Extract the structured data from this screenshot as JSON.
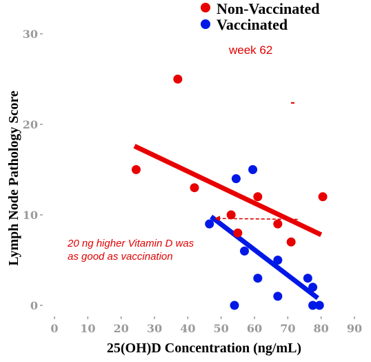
{
  "chart_data": {
    "type": "scatter",
    "subtitle": "week 62",
    "xlabel": "25(OH)D Concentration (ng/mL)",
    "ylabel": "Lymph Node Pathology Score",
    "xlim": [
      0,
      90
    ],
    "ylim": [
      0,
      30
    ],
    "x_ticks": [
      "0",
      "10",
      "20",
      "30",
      "40",
      "50",
      "60",
      "70",
      "80",
      "90"
    ],
    "y_ticks": [
      "0",
      "10",
      "20",
      "30"
    ],
    "grid": false,
    "legend_position": "top-right",
    "series": [
      {
        "name": "Non-Vaccinated",
        "color": "#e80000",
        "points": [
          [
            24.5,
            15
          ],
          [
            37,
            25
          ],
          [
            42,
            13
          ],
          [
            53,
            10
          ],
          [
            55,
            8
          ],
          [
            61,
            12
          ],
          [
            67,
            9
          ],
          [
            71,
            7
          ],
          [
            80.5,
            12
          ]
        ],
        "fit": [
          [
            24,
            17.6
          ],
          [
            80,
            7.8
          ]
        ]
      },
      {
        "name": "Vaccinated",
        "color": "#0018e6",
        "points": [
          [
            46.5,
            9
          ],
          [
            54,
            0
          ],
          [
            54.5,
            14
          ],
          [
            57,
            6
          ],
          [
            59.5,
            15
          ],
          [
            61,
            3
          ],
          [
            67,
            5
          ],
          [
            67,
            1
          ],
          [
            76,
            3
          ],
          [
            77.5,
            2
          ],
          [
            77.5,
            0
          ],
          [
            79.5,
            0
          ]
        ],
        "fit": [
          [
            47,
            9.8
          ],
          [
            79,
            0.8
          ]
        ]
      }
    ],
    "annotations": [
      {
        "text_lines": [
          "20 ng higher Vitamin D was",
          "as good as vaccination"
        ]
      }
    ],
    "arrow": {
      "from": [
        73,
        9.5
      ],
      "to": [
        48,
        9.6
      ]
    }
  }
}
